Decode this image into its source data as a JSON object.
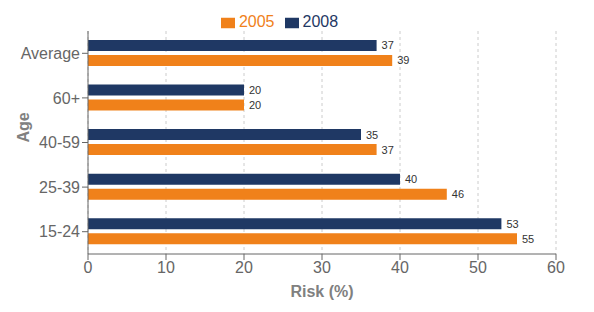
{
  "chart_data": {
    "type": "bar",
    "orientation": "horizontal",
    "categories": [
      "15-24",
      "25-39",
      "40-59",
      "60+",
      "Average"
    ],
    "series": [
      {
        "name": "2008",
        "color": "#1F3864",
        "values": [
          53,
          40,
          35,
          20,
          37
        ]
      },
      {
        "name": "2005",
        "color": "#F0811A",
        "values": [
          55,
          46,
          37,
          20,
          39
        ]
      }
    ],
    "xlabel": "Risk (%)",
    "ylabel": "Age",
    "xlim": [
      0,
      60
    ],
    "xticks": [
      0,
      10,
      20,
      30,
      40,
      50,
      60
    ],
    "grid": true,
    "legend": "top",
    "data_labels": true
  }
}
